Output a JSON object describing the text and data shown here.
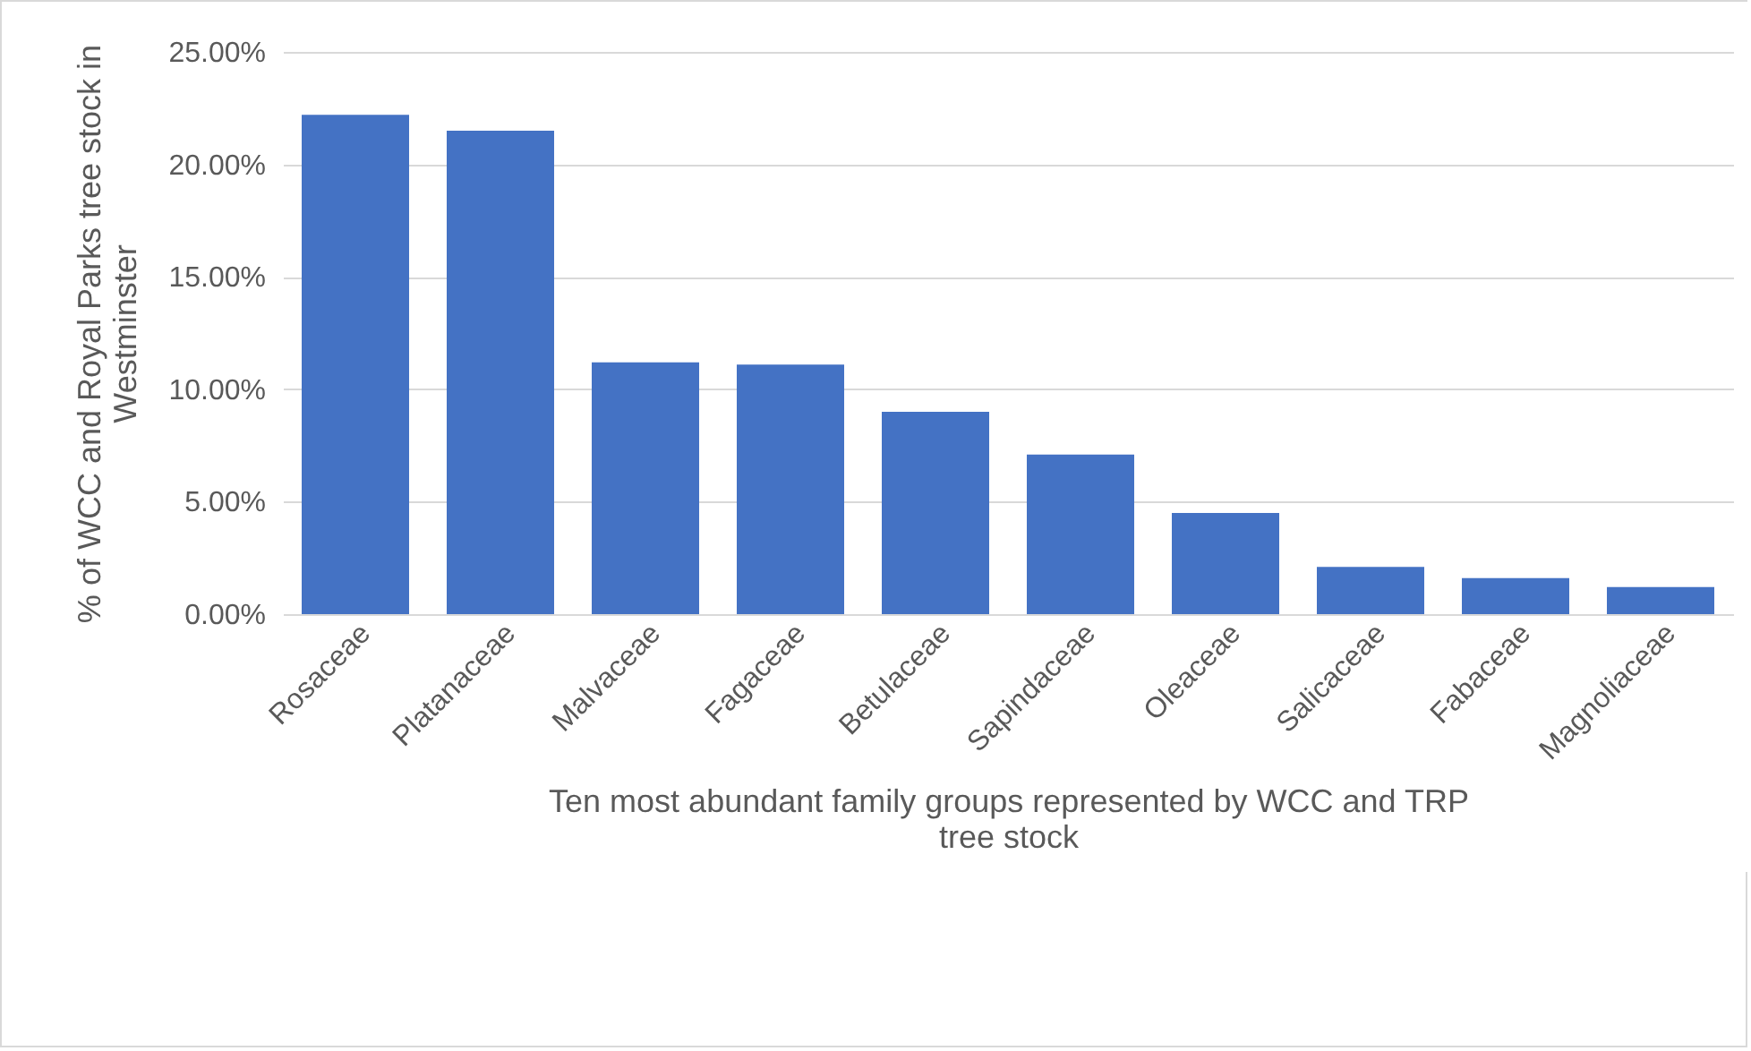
{
  "chart_data": {
    "type": "bar",
    "xlabel": "Ten most abundant family groups represented by WCC and TRP tree stock",
    "ylabel": "% of WCC and Royal Parks tree stock in Westminster",
    "categories": [
      "Rosaceae",
      "Platanaceae",
      "Malvaceae",
      "Fagaceae",
      "Betulaceae",
      "Sapindaceae",
      "Oleaceae",
      "Salicaceae",
      "Fabaceae",
      "Magnoliaceae"
    ],
    "values": [
      22.2,
      21.5,
      11.2,
      11.1,
      9.0,
      7.1,
      4.5,
      2.1,
      1.6,
      1.2
    ],
    "color": "#4472c4",
    "ylim": [
      0,
      25
    ],
    "yticks": [
      {
        "value": 0,
        "label": "0.00%"
      },
      {
        "value": 5,
        "label": "5.00%"
      },
      {
        "value": 10,
        "label": "10.00%"
      },
      {
        "value": 15,
        "label": "15.00%"
      },
      {
        "value": 20,
        "label": "20.00%"
      },
      {
        "value": 25,
        "label": "25.00%"
      }
    ],
    "grid": "y"
  }
}
